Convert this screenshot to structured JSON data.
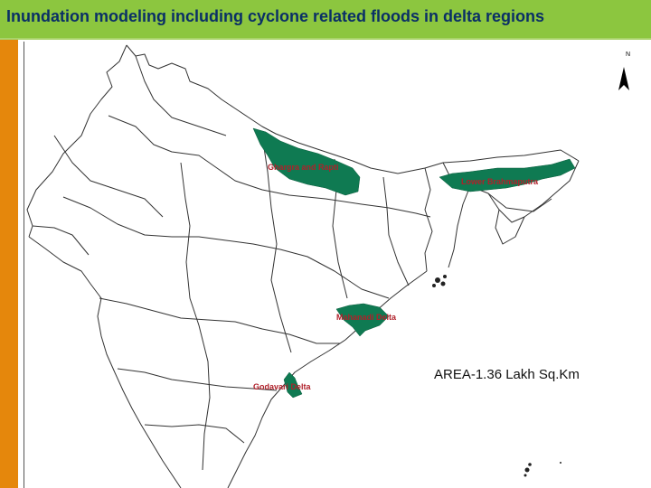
{
  "header": {
    "title": "Inundation modeling including cyclone related floods in delta regions"
  },
  "map": {
    "north_label": "N",
    "regions": [
      {
        "label": "Ghargra and Rapti"
      },
      {
        "label": "Lower Brahmaputra"
      },
      {
        "label": "Mahanadi Delta"
      },
      {
        "label": "Godavari Delta"
      }
    ],
    "area_note": "AREA-1.36 Lakh Sq.Km",
    "colors": {
      "flood_region": "#0f7a52",
      "label_text": "#b0202a",
      "boundary": "#333333",
      "title_bar": "#8cc63f",
      "side_stripe": "#e5870c",
      "title_text": "#0a2f66"
    }
  }
}
